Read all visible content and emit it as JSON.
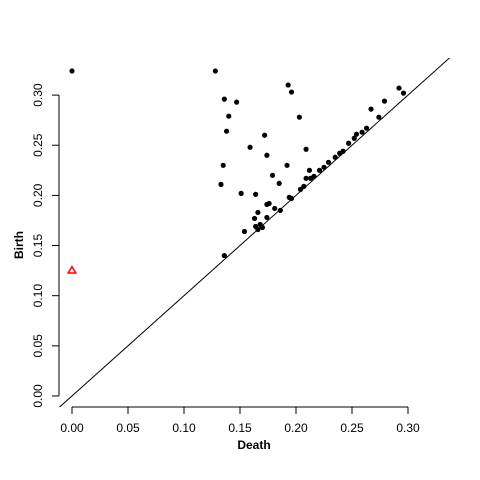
{
  "chart_data": {
    "type": "scatter",
    "x_label": "Death",
    "y_label": "Birth",
    "xlim": [
      -0.0116,
      0.3375
    ],
    "ylim": [
      -0.011,
      0.337
    ],
    "xticks": [
      {
        "value": 0,
        "label": "0.00"
      },
      {
        "value": 0.05,
        "label": "0.05"
      },
      {
        "value": 0.1,
        "label": "0.10"
      },
      {
        "value": 0.15,
        "label": "0.15"
      },
      {
        "value": 0.2,
        "label": "0.20"
      },
      {
        "value": 0.25,
        "label": "0.25"
      },
      {
        "value": 0.3,
        "label": "0.30"
      }
    ],
    "yticks": [
      {
        "value": 0,
        "label": "0.00"
      },
      {
        "value": 0.05,
        "label": "0.05"
      },
      {
        "value": 0.1,
        "label": "0.10"
      },
      {
        "value": 0.15,
        "label": "0.15"
      },
      {
        "value": 0.2,
        "label": "0.20"
      },
      {
        "value": 0.25,
        "label": "0.25"
      },
      {
        "value": 0.3,
        "label": "0.30"
      }
    ],
    "diagonal": true,
    "series": [
      {
        "color": "#000000",
        "marker": "circle",
        "x": [
          0,
          0.128,
          0.193,
          0.196,
          0.136,
          0.147,
          0.292,
          0.296,
          0.279,
          0.267,
          0.274,
          0.14,
          0.138,
          0.203,
          0.172,
          0.209,
          0.159,
          0.135,
          0.174,
          0.192,
          0.133,
          0.151,
          0.179,
          0.185,
          0.164,
          0.194,
          0.196,
          0.176,
          0.174,
          0.181,
          0.186,
          0.166,
          0.163,
          0.174,
          0.164,
          0.168,
          0.166,
          0.17,
          0.154,
          0.136,
          0.204,
          0.207,
          0.209,
          0.213,
          0.212,
          0.216,
          0.221,
          0.225,
          0.229,
          0.235,
          0.239,
          0.242,
          0.247,
          0.252,
          0.254,
          0.259,
          0.263
        ],
        "values": [
          0.324,
          0.324,
          0.31,
          0.303,
          0.296,
          0.293,
          0.307,
          0.302,
          0.294,
          0.286,
          0.278,
          0.279,
          0.264,
          0.278,
          0.26,
          0.246,
          0.248,
          0.23,
          0.24,
          0.23,
          0.211,
          0.202,
          0.22,
          0.212,
          0.201,
          0.198,
          0.197,
          0.192,
          0.191,
          0.187,
          0.185,
          0.183,
          0.177,
          0.178,
          0.169,
          0.171,
          0.166,
          0.168,
          0.164,
          0.14,
          0.206,
          0.209,
          0.217,
          0.217,
          0.225,
          0.219,
          0.225,
          0.228,
          0.233,
          0.238,
          0.242,
          0.244,
          0.252,
          0.257,
          0.261,
          0.263,
          0.267
        ]
      },
      {
        "color": "#ff0000",
        "marker": "triangle",
        "x": [
          0
        ],
        "values": [
          0.125
        ]
      }
    ]
  }
}
